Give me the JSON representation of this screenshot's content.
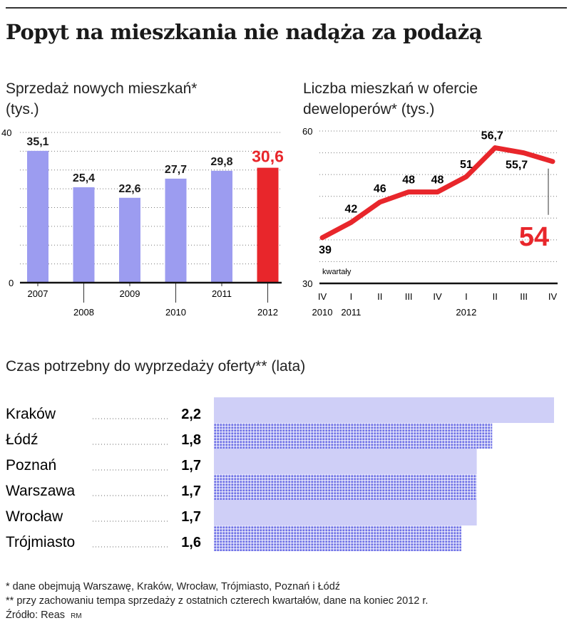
{
  "title": "Popyt na mieszkania nie nadąża za podażą",
  "chart_data": [
    {
      "type": "bar",
      "title": "Sprzedaż nowych mieszkań*",
      "unit": "(tys.)",
      "categories": [
        "2007",
        "2008",
        "2009",
        "2010",
        "2011",
        "2012"
      ],
      "values": [
        35.1,
        25.4,
        22.6,
        27.7,
        29.8,
        30.6
      ],
      "value_labels": [
        "35,1",
        "25,4",
        "22,6",
        "27,7",
        "29,8",
        "30,6"
      ],
      "highlight_index": 5,
      "ylim": [
        0,
        40
      ],
      "yticks": [
        "0",
        "40"
      ],
      "colors": {
        "bar": "#9c9cf0",
        "highlight": "#e8262b"
      },
      "grid": "dotted"
    },
    {
      "type": "line",
      "title": "Liczba mieszkań w ofercie",
      "title_line2": "deweloperów*",
      "unit": "(tys.)",
      "x_quarters": [
        "IV",
        "I",
        "II",
        "III",
        "IV",
        "I",
        "II",
        "III",
        "IV"
      ],
      "x_years": [
        {
          "label": "2010",
          "index": 0
        },
        {
          "label": "2011",
          "index": 1
        },
        {
          "label": "2012",
          "index": 5
        }
      ],
      "x_caption": "kwartały",
      "values": [
        39,
        42,
        46,
        48,
        48,
        51,
        56.7,
        55.7,
        54
      ],
      "point_labels": [
        "39",
        "42",
        "46",
        "48",
        "48",
        "51",
        "56,7",
        "55,7",
        "54"
      ],
      "highlight_index": 8,
      "ylim": [
        30,
        60
      ],
      "yticks": [
        "30",
        "60"
      ],
      "colors": {
        "line": "#e8262b",
        "highlight": "#e8262b"
      },
      "grid": "dotted"
    },
    {
      "type": "bar",
      "orientation": "horizontal",
      "title": "Czas potrzebny do wyprzedaży oferty**",
      "unit": "(lata)",
      "categories": [
        "Kraków",
        "Łódź",
        "Poznań",
        "Warszawa",
        "Wrocław",
        "Trójmiasto"
      ],
      "values": [
        2.2,
        1.8,
        1.7,
        1.7,
        1.7,
        1.6
      ],
      "value_labels": [
        "2,2",
        "1,8",
        "1,7",
        "1,7",
        "1,7",
        "1,6"
      ],
      "colors": {
        "solid": "#cfcff7",
        "dotted": "#6f72e6"
      }
    }
  ],
  "footnotes": [
    "* dane obejmują Warszawę, Kraków, Wrocław, Trójmiasto, Poznań i Łódź",
    "** przy zachowaniu tempa sprzedaży z ostatnich czterech kwartałów, dane na koniec 2012 r.",
    "Źródło: Reas"
  ],
  "credit": "RM"
}
